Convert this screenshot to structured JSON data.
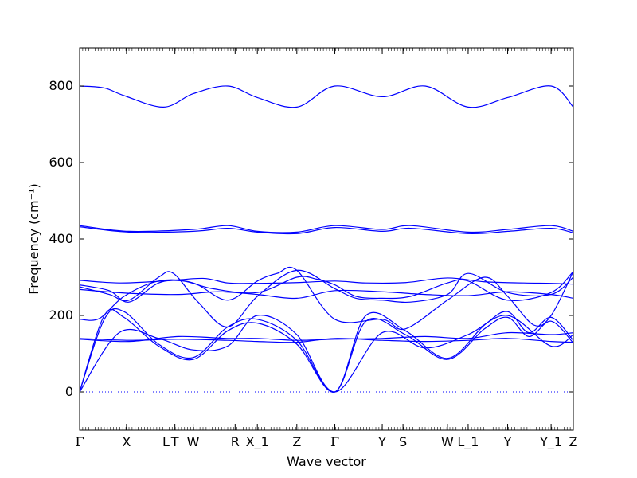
{
  "chart_data": {
    "type": "line",
    "xlabel": "Wave vector",
    "ylabel": "Frequency (cm⁻¹)",
    "ylim": [
      -100,
      900
    ],
    "y_ticks": [
      0,
      200,
      400,
      600,
      800
    ],
    "xlim": [
      0,
      1
    ],
    "grid": false,
    "line_color": "#0000ff",
    "zero_line_color": "#0000ff",
    "high_symmetry_points": [
      {
        "label": "Γ",
        "x": 0.0
      },
      {
        "label": "X",
        "x": 0.095
      },
      {
        "label": "L",
        "x": 0.175
      },
      {
        "label": "T",
        "x": 0.193
      },
      {
        "label": "W",
        "x": 0.23
      },
      {
        "label": "R",
        "x": 0.315
      },
      {
        "label": "X_1",
        "x": 0.36
      },
      {
        "label": "Z",
        "x": 0.44
      },
      {
        "label": "Γ",
        "x": 0.517
      },
      {
        "label": "Y",
        "x": 0.613
      },
      {
        "label": "S",
        "x": 0.655
      },
      {
        "label": "W",
        "x": 0.745
      },
      {
        "label": "L_1",
        "x": 0.787
      },
      {
        "label": "Y",
        "x": 0.867
      },
      {
        "label": "Y_1",
        "x": 0.955
      },
      {
        "label": "Z",
        "x": 1.0
      }
    ],
    "series": [
      {
        "x": [
          0.0,
          0.05,
          0.09,
          0.17,
          0.23,
          0.3,
          0.36,
          0.44,
          0.517,
          0.613,
          0.7,
          0.787,
          0.867,
          0.955,
          1.0
        ],
        "values": [
          800,
          795,
          775,
          745,
          780,
          800,
          770,
          745,
          800,
          772,
          800,
          745,
          770,
          800,
          745
        ]
      },
      {
        "x": [
          0.0,
          0.1,
          0.23,
          0.3,
          0.36,
          0.44,
          0.517,
          0.613,
          0.67,
          0.787,
          0.867,
          0.955,
          1.0
        ],
        "values": [
          435,
          420,
          425,
          435,
          420,
          418,
          435,
          425,
          435,
          418,
          425,
          435,
          420
        ]
      },
      {
        "x": [
          0.0,
          0.1,
          0.23,
          0.3,
          0.36,
          0.44,
          0.517,
          0.613,
          0.67,
          0.787,
          0.867,
          0.955,
          1.0
        ],
        "values": [
          432,
          418,
          420,
          428,
          418,
          414,
          430,
          420,
          428,
          414,
          420,
          428,
          416
        ]
      },
      {
        "x": [
          0.0,
          0.08,
          0.17,
          0.25,
          0.3,
          0.36,
          0.44,
          0.517,
          0.58,
          0.66,
          0.745,
          0.82,
          0.9,
          0.955,
          1.0
        ],
        "values": [
          292,
          285,
          290,
          297,
          285,
          284,
          286,
          290,
          285,
          286,
          298,
          288,
          285,
          284,
          282
        ]
      },
      {
        "x": [
          0.0,
          0.06,
          0.1,
          0.16,
          0.21,
          0.27,
          0.36,
          0.44,
          0.48,
          0.517,
          0.56,
          0.613,
          0.67,
          0.745,
          0.787,
          0.867,
          0.955,
          1.0
        ],
        "values": [
          280,
          265,
          235,
          285,
          290,
          270,
          260,
          300,
          295,
          280,
          250,
          245,
          250,
          285,
          290,
          240,
          260,
          315
        ]
      },
      {
        "x": [
          0.0,
          0.06,
          0.1,
          0.16,
          0.19,
          0.24,
          0.3,
          0.36,
          0.44,
          0.517,
          0.56,
          0.613,
          0.67,
          0.745,
          0.787,
          0.867,
          0.955,
          1.0
        ],
        "values": [
          275,
          255,
          240,
          300,
          310,
          235,
          170,
          250,
          318,
          270,
          245,
          240,
          235,
          255,
          310,
          260,
          255,
          300
        ]
      },
      {
        "x": [
          0.0,
          0.1,
          0.2,
          0.28,
          0.36,
          0.44,
          0.517,
          0.613,
          0.7,
          0.787,
          0.867,
          0.955,
          1.0
        ],
        "values": [
          268,
          258,
          255,
          262,
          255,
          245,
          265,
          262,
          255,
          252,
          262,
          255,
          245
        ]
      },
      {
        "x": [
          0.0,
          0.04,
          0.09,
          0.16,
          0.23,
          0.3,
          0.36,
          0.4,
          0.44,
          0.517,
          0.613,
          0.66,
          0.745,
          0.82,
          0.867,
          0.92,
          0.955,
          1.0
        ],
        "values": [
          190,
          192,
          250,
          290,
          285,
          240,
          290,
          310,
          318,
          190,
          190,
          165,
          240,
          300,
          250,
          175,
          200,
          315
        ]
      },
      {
        "x": [
          0.0,
          0.05,
          0.09,
          0.16,
          0.23,
          0.3,
          0.36,
          0.44,
          0.517,
          0.58,
          0.66,
          0.745,
          0.82,
          0.867,
          0.91,
          0.955,
          1.0
        ],
        "values": [
          0,
          190,
          210,
          125,
          90,
          170,
          190,
          135,
          0,
          200,
          160,
          88,
          175,
          210,
          155,
          195,
          135
        ]
      },
      {
        "x": [
          0.0,
          0.05,
          0.09,
          0.16,
          0.23,
          0.3,
          0.36,
          0.44,
          0.517,
          0.58,
          0.66,
          0.745,
          0.82,
          0.867,
          0.91,
          0.955,
          1.0
        ],
        "values": [
          0,
          200,
          195,
          120,
          85,
          160,
          180,
          125,
          0,
          185,
          150,
          85,
          165,
          195,
          145,
          185,
          128
        ]
      },
      {
        "x": [
          0.0,
          0.08,
          0.16,
          0.23,
          0.3,
          0.36,
          0.44,
          0.517,
          0.613,
          0.7,
          0.787,
          0.867,
          0.955,
          1.0
        ],
        "values": [
          0,
          155,
          140,
          110,
          120,
          200,
          150,
          0,
          155,
          115,
          150,
          200,
          120,
          150
        ]
      },
      {
        "x": [
          0.0,
          0.1,
          0.2,
          0.3,
          0.36,
          0.44,
          0.517,
          0.613,
          0.7,
          0.787,
          0.867,
          0.955,
          1.0
        ],
        "values": [
          140,
          135,
          138,
          135,
          132,
          130,
          140,
          135,
          132,
          135,
          140,
          132,
          130
        ]
      },
      {
        "x": [
          0.0,
          0.1,
          0.2,
          0.3,
          0.36,
          0.44,
          0.517,
          0.613,
          0.7,
          0.787,
          0.867,
          0.955,
          1.0
        ],
        "values": [
          138,
          132,
          145,
          140,
          140,
          135,
          138,
          140,
          145,
          140,
          155,
          150,
          155
        ]
      }
    ]
  }
}
